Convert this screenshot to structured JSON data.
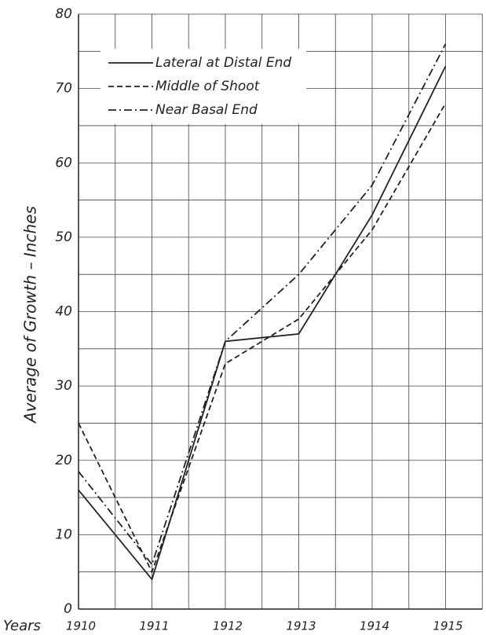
{
  "chart_data": {
    "type": "line",
    "ylabel": "Average of Growth – Inches",
    "xlabel": "Years",
    "categories": [
      "1910",
      "1911",
      "1912",
      "1913",
      "1914",
      "1915"
    ],
    "series": [
      {
        "name": "Lateral at Distal End",
        "color": "#222",
        "dash": "solid",
        "values": [
          16,
          4,
          36,
          37,
          53,
          73
        ]
      },
      {
        "name": "Middle of Shoot",
        "color": "#222",
        "dash": "dashed",
        "values": [
          25,
          5,
          33,
          39,
          51,
          68
        ]
      },
      {
        "name": "Near Basal End",
        "color": "#222",
        "dash": "dashdot",
        "values": [
          18.5,
          6,
          36,
          45,
          57,
          76
        ]
      }
    ],
    "ylim": [
      0,
      80
    ],
    "yticks": [
      0,
      10,
      20,
      30,
      40,
      50,
      60,
      70,
      80
    ],
    "grid": true,
    "legend": "upper left"
  }
}
